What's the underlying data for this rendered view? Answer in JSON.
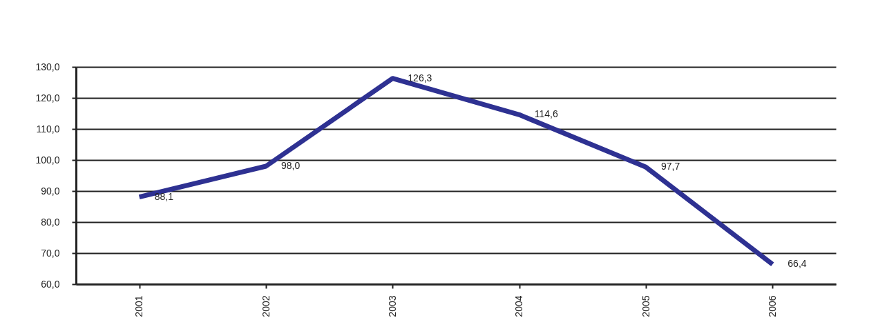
{
  "chart_data": {
    "type": "line",
    "categories": [
      "2001",
      "2002",
      "2003",
      "2004",
      "2005",
      "2006"
    ],
    "series": [
      {
        "color": "#2e3192",
        "values": [
          88.1,
          98.0,
          126.3,
          114.6,
          97.7,
          66.4
        ]
      }
    ],
    "value_labels": [
      "88,1",
      "98,0",
      "126,3",
      "114,6",
      "97,7",
      "66,4"
    ],
    "ylim": [
      60,
      130
    ],
    "yticks": [
      {
        "value": 60,
        "label": "60,0"
      },
      {
        "value": 70,
        "label": "70,0"
      },
      {
        "value": 80,
        "label": "80,0"
      },
      {
        "value": 90,
        "label": "90,0"
      },
      {
        "value": 100,
        "label": "100,0"
      },
      {
        "value": 110,
        "label": "110,0"
      },
      {
        "value": 120,
        "label": "120,0"
      },
      {
        "value": 130,
        "label": "130,0"
      }
    ],
    "grid": "y",
    "marker": "none",
    "line_style": "solid",
    "legend": false
  }
}
